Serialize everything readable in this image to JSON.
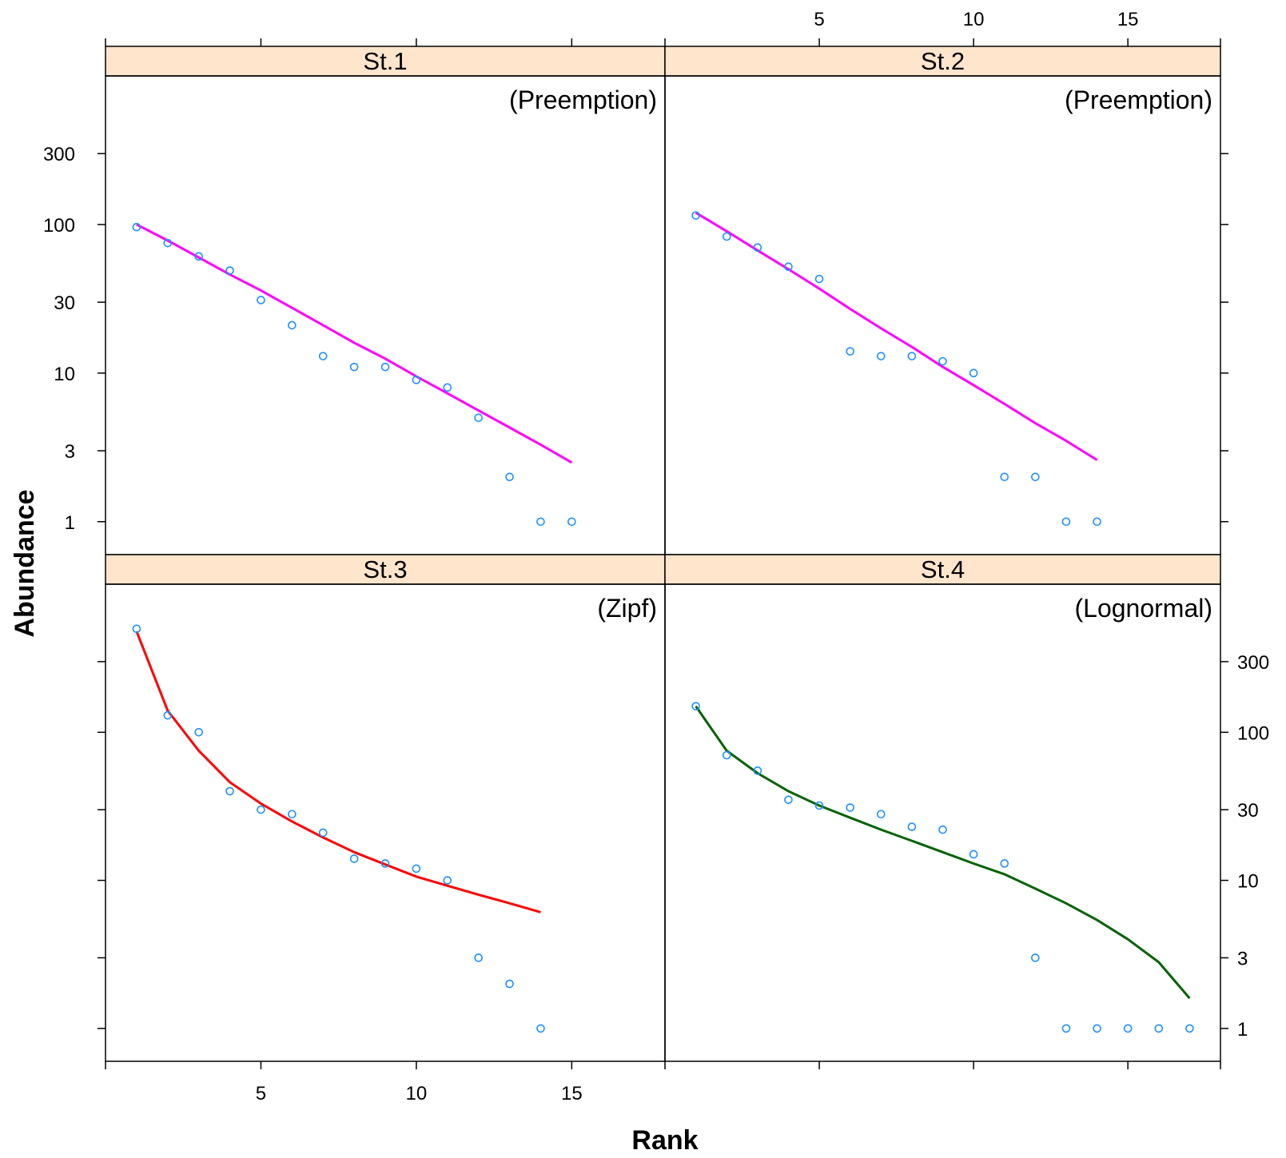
{
  "chart_data": {
    "type": "scatter",
    "title": "",
    "xlabel": "Rank",
    "ylabel": "Abundance",
    "x_ticks": [
      "5",
      "10",
      "15"
    ],
    "y_ticks": [
      "1",
      "3",
      "10",
      "30",
      "100",
      "300"
    ],
    "xlim": [
      0,
      18
    ],
    "ylim_log": [
      0.6,
      1000
    ],
    "y_scale": "log10",
    "colors": {
      "strip_bg": "#ffe5cc",
      "points": "#1e90ff",
      "Preemption": "#ff00ff",
      "Zipf": "#ff0000",
      "Lognormal": "#006400"
    },
    "panels": [
      {
        "name": "St.1",
        "model": "(Preemption)",
        "line_color": "#ff00ff",
        "points": [
          [
            1,
            96
          ],
          [
            2,
            75
          ],
          [
            3,
            61
          ],
          [
            4,
            49
          ],
          [
            5,
            31
          ],
          [
            6,
            21
          ],
          [
            7,
            13
          ],
          [
            8,
            11
          ],
          [
            9,
            11
          ],
          [
            10,
            9
          ],
          [
            11,
            8
          ],
          [
            12,
            5
          ],
          [
            13,
            2
          ],
          [
            14,
            1
          ],
          [
            15,
            1
          ]
        ],
        "fitted": [
          [
            1,
            100
          ],
          [
            2,
            78
          ],
          [
            3,
            60
          ],
          [
            4,
            46
          ],
          [
            5,
            36
          ],
          [
            6,
            27.5
          ],
          [
            7,
            21
          ],
          [
            8,
            16
          ],
          [
            9,
            12.5
          ],
          [
            10,
            9.5
          ],
          [
            11,
            7.3
          ],
          [
            12,
            5.6
          ],
          [
            13,
            4.3
          ],
          [
            14,
            3.3
          ],
          [
            15,
            2.5
          ]
        ]
      },
      {
        "name": "St.2",
        "model": "(Preemption)",
        "line_color": "#ff00ff",
        "points": [
          [
            1,
            115
          ],
          [
            2,
            83
          ],
          [
            3,
            70
          ],
          [
            4,
            52
          ],
          [
            5,
            43
          ],
          [
            6,
            14
          ],
          [
            7,
            13
          ],
          [
            8,
            13
          ],
          [
            9,
            12
          ],
          [
            10,
            10
          ],
          [
            11,
            2
          ],
          [
            12,
            2
          ],
          [
            13,
            1
          ],
          [
            14,
            1
          ]
        ],
        "fitted": [
          [
            1,
            120
          ],
          [
            2,
            90
          ],
          [
            3,
            67
          ],
          [
            4,
            50
          ],
          [
            5,
            37
          ],
          [
            6,
            27
          ],
          [
            7,
            20
          ],
          [
            8,
            15
          ],
          [
            9,
            11
          ],
          [
            10,
            8.3
          ],
          [
            11,
            6.2
          ],
          [
            12,
            4.6
          ],
          [
            13,
            3.5
          ],
          [
            14,
            2.6
          ]
        ]
      },
      {
        "name": "St.3",
        "model": "(Zipf)",
        "line_color": "#ff0000",
        "points": [
          [
            1,
            500
          ],
          [
            2,
            130
          ],
          [
            3,
            100
          ],
          [
            4,
            40
          ],
          [
            5,
            30
          ],
          [
            6,
            28
          ],
          [
            7,
            21
          ],
          [
            8,
            14
          ],
          [
            9,
            13
          ],
          [
            10,
            12
          ],
          [
            11,
            10
          ],
          [
            12,
            3
          ],
          [
            13,
            2
          ],
          [
            14,
            1
          ]
        ],
        "fitted": [
          [
            1,
            480
          ],
          [
            2,
            140
          ],
          [
            3,
            75
          ],
          [
            4,
            46
          ],
          [
            5,
            33
          ],
          [
            6,
            25
          ],
          [
            7,
            19.5
          ],
          [
            8,
            15.5
          ],
          [
            9,
            12.8
          ],
          [
            10,
            10.6
          ],
          [
            11,
            9.2
          ],
          [
            12,
            8
          ],
          [
            13,
            7
          ],
          [
            14,
            6.1
          ]
        ]
      },
      {
        "name": "St.4",
        "model": "(Lognormal)",
        "line_color": "#006400",
        "points": [
          [
            1,
            150
          ],
          [
            2,
            70
          ],
          [
            3,
            55
          ],
          [
            4,
            35
          ],
          [
            5,
            32
          ],
          [
            6,
            31
          ],
          [
            7,
            28
          ],
          [
            8,
            23
          ],
          [
            9,
            22
          ],
          [
            10,
            15
          ],
          [
            11,
            13
          ],
          [
            12,
            3
          ],
          [
            13,
            1
          ],
          [
            14,
            1
          ],
          [
            15,
            1
          ],
          [
            16,
            1
          ],
          [
            17,
            1
          ]
        ],
        "fitted": [
          [
            1,
            150
          ],
          [
            2,
            75
          ],
          [
            3,
            53
          ],
          [
            4,
            40
          ],
          [
            5,
            32
          ],
          [
            6,
            26.5
          ],
          [
            7,
            22
          ],
          [
            8,
            18.5
          ],
          [
            9,
            15.5
          ],
          [
            10,
            13
          ],
          [
            11,
            11
          ],
          [
            12,
            8.8
          ],
          [
            13,
            7
          ],
          [
            14,
            5.4
          ],
          [
            15,
            4
          ],
          [
            16,
            2.8
          ],
          [
            17,
            1.6
          ]
        ]
      }
    ]
  }
}
